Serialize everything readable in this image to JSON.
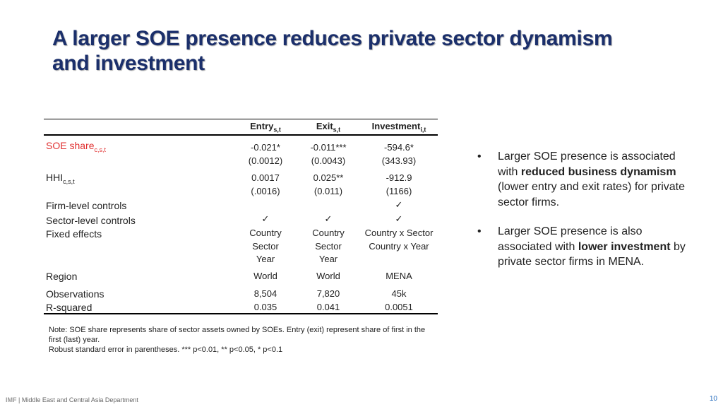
{
  "title": "A larger SOE presence reduces private sector dynamism and investment",
  "table": {
    "headers": [
      {
        "name": "Entry",
        "sub": "s,t"
      },
      {
        "name": "Exit",
        "sub": "s,t"
      },
      {
        "name": "Investment",
        "sub": "i,t"
      }
    ],
    "rows": {
      "soe": {
        "label": "SOE share",
        "sub": "c,s,t",
        "coef": [
          "-0.021*",
          "-0.011***",
          "-594.6*"
        ],
        "se": [
          "(0.0012)",
          "(0.0043)",
          "(343.93)"
        ]
      },
      "hhi": {
        "label": "HHI",
        "sub": "c,s,t",
        "coef": [
          "0.0017",
          "0.025**",
          "-912.9"
        ],
        "se": [
          "(.0016)",
          "(0.011)",
          "(1166)"
        ]
      },
      "firm_controls": {
        "label": "Firm-level controls",
        "mark3": "✓"
      },
      "sector_controls": {
        "label": "Sector-level controls",
        "marks": [
          "✓",
          "✓",
          "✓"
        ]
      },
      "fixed_effects": {
        "label": "Fixed effects",
        "col1": [
          "Country",
          "Sector",
          "Year"
        ],
        "col2": [
          "Country",
          "Sector",
          "Year"
        ],
        "col3": [
          "Country x Sector",
          "Country x Year"
        ]
      },
      "region": {
        "label": "Region",
        "values": [
          "World",
          "World",
          "MENA"
        ]
      },
      "observations": {
        "label": "Observations",
        "values": [
          "8,504",
          "7,820",
          "45k"
        ]
      },
      "rsquared": {
        "label": "R-squared",
        "values": [
          "0.035",
          "0.041",
          "0.0051"
        ]
      }
    }
  },
  "bullets": [
    {
      "pre": "Larger SOE presence is associated with ",
      "bold": "reduced business dynamism",
      "post": " (lower entry and exit rates) for private sector firms."
    },
    {
      "pre": "Larger SOE presence is also associated with ",
      "bold": "lower investment",
      "post": " by private sector firms in MENA."
    }
  ],
  "bullet_symbol": "•",
  "note": {
    "line1": "Note: SOE share represents share of sector assets owned by SOEs. Entry (exit) represent share of first in the first (last) year.",
    "line2": "Robust standard error in parentheses. *** p<0.01, ** p<0.05, * p<0.1"
  },
  "footer": {
    "org": "IMF",
    "sep": " | ",
    "department": "Middle East and Central Asia Department"
  },
  "page_number": "10",
  "colors": {
    "title": "#1b2f6b",
    "highlight": "#e03030",
    "page_number": "#2a6fbf"
  }
}
